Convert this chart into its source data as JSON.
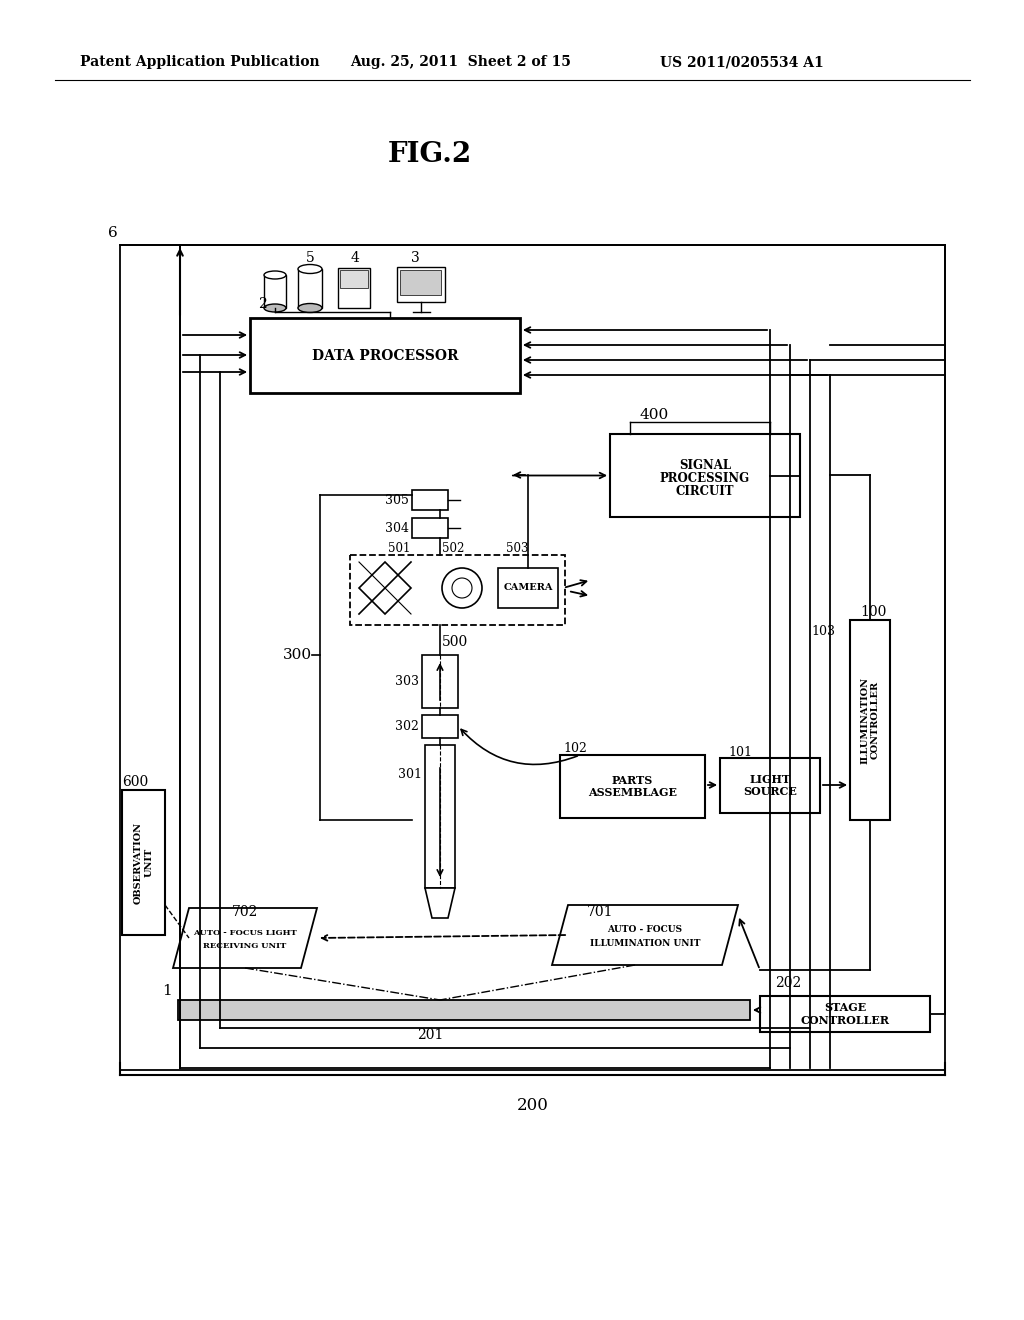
{
  "title": "FIG.2",
  "header_left": "Patent Application Publication",
  "header_mid": "Aug. 25, 2011  Sheet 2 of 15",
  "header_right": "US 2011/0205534 A1",
  "bg_color": "#ffffff",
  "fg_color": "#000000"
}
